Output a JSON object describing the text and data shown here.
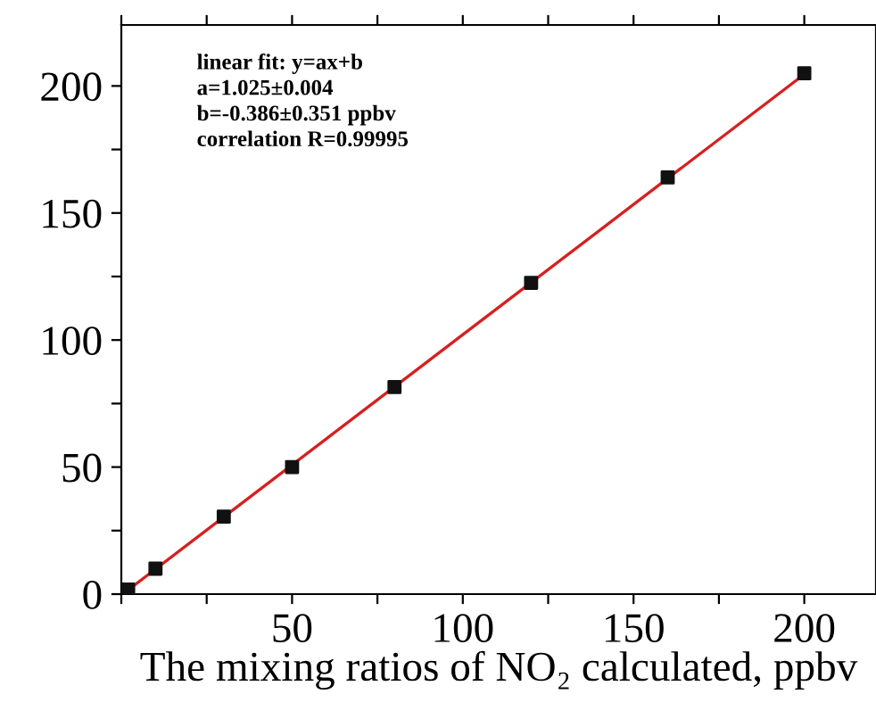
{
  "chart_data": {
    "type": "scatter",
    "xlabel": "The mixing ratios of NO₂ calculated, ppbv",
    "annotations": [
      "linear fit: y=ax+b\na=1.025±0.004\nb=-0.386±0.351 ppbv\ncorrelation R=0.99995"
    ],
    "series": [
      {
        "color": "#111111",
        "marker": "square",
        "x": [
          2,
          10,
          30,
          50,
          80,
          120,
          160,
          200
        ],
        "values": [
          1.8,
          10,
          30.5,
          50,
          81.5,
          122.5,
          164,
          205
        ]
      },
      {
        "type": "line",
        "color": "#d62020",
        "marker": "none",
        "line_style": "solid",
        "x": [
          0.4,
          200
        ],
        "values": [
          0,
          204.6
        ]
      }
    ],
    "xlim": [
      0,
      221
    ],
    "ylim": [
      0,
      224
    ],
    "xticks": [
      {
        "value": 0,
        "label": null
      },
      {
        "value": 25,
        "label": null
      },
      50,
      {
        "value": 75,
        "label": null
      },
      100,
      {
        "value": 125,
        "label": null
      },
      150,
      {
        "value": 175,
        "label": null
      },
      200
    ],
    "yticks": [
      0,
      {
        "value": 25,
        "label": null
      },
      50,
      {
        "value": 75,
        "label": null
      },
      100,
      {
        "value": 125,
        "label": null
      },
      150,
      {
        "value": 175,
        "label": null
      },
      200
    ],
    "grid": false,
    "legend": false
  }
}
